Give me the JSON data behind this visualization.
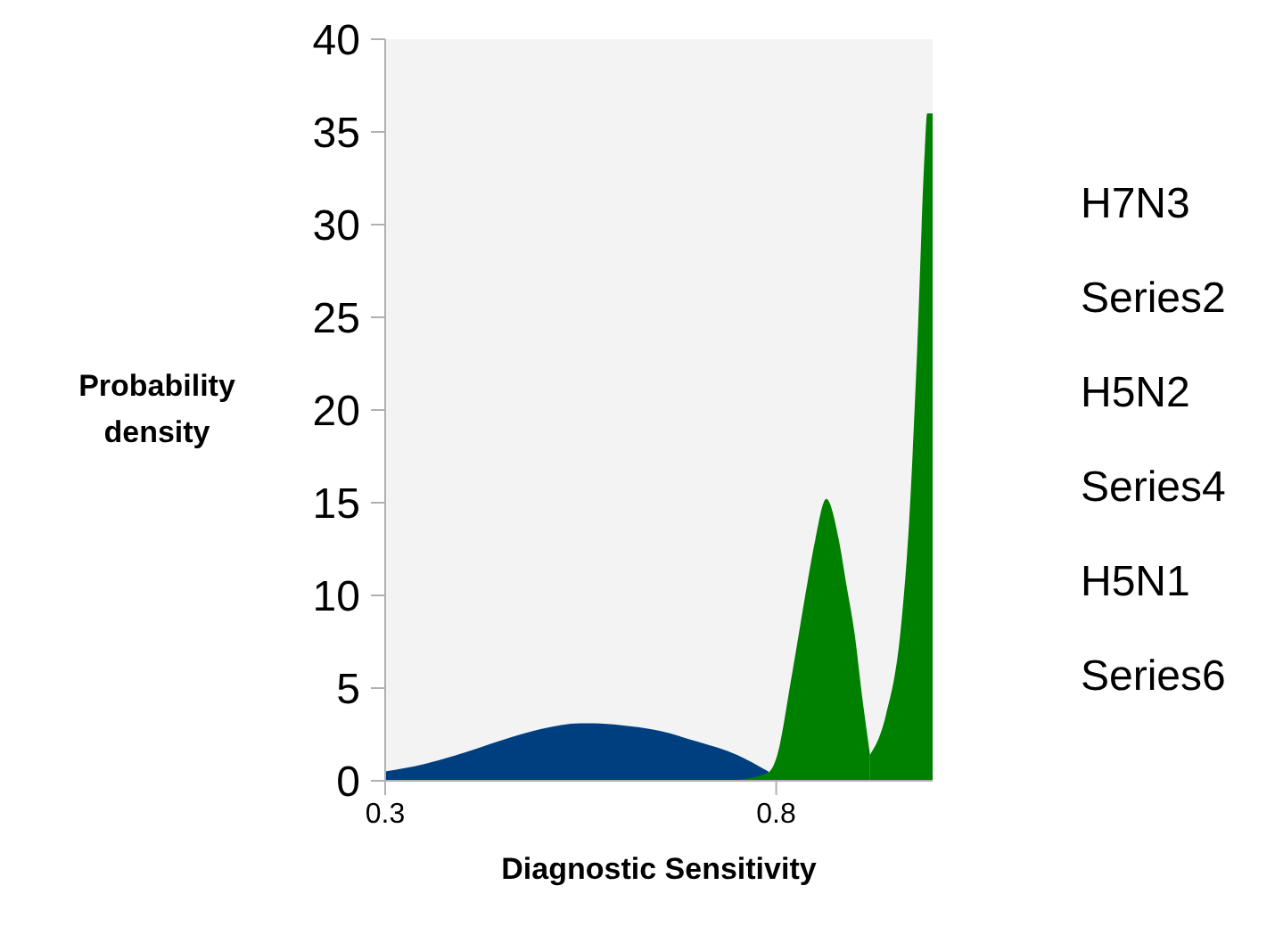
{
  "chart_data": {
    "type": "area",
    "xlabel": "Diagnostic Sensitivity",
    "ylabel": "Probability density",
    "annotations": [
      "H7N3",
      "Series2",
      "H5N2",
      "Series4",
      "H5N1",
      "Series6"
    ],
    "xlim": [
      0.3,
      1.0
    ],
    "xticks": [
      0.3,
      0.8
    ],
    "ylim": [
      0,
      40
    ],
    "yticks": [
      0,
      5,
      10,
      15,
      20,
      25,
      30,
      35,
      40
    ],
    "grid": false,
    "series": [
      {
        "color": "#003f7f",
        "x": [
          0.3,
          0.35,
          0.4,
          0.45,
          0.5,
          0.55,
          0.567,
          0.6,
          0.65,
          0.7,
          0.75,
          0.79
        ],
        "values": [
          0.5,
          0.9,
          1.5,
          2.2,
          2.8,
          3.1,
          3.1,
          3.0,
          2.7,
          2.1,
          1.4,
          0.5
        ]
      },
      {
        "color": "#008000",
        "x": [
          0.75,
          0.79,
          0.8,
          0.82,
          0.84,
          0.85,
          0.864,
          0.88,
          0.89,
          0.9,
          0.91,
          0.92
        ],
        "values": [
          0.05,
          0.45,
          1.2,
          5.7,
          10.7,
          13.0,
          15.2,
          13.0,
          10.5,
          8.0,
          4.5,
          1.4
        ]
      },
      {
        "color": "#008000",
        "x": [
          0.92,
          0.94,
          0.96,
          0.97,
          0.98,
          0.99,
          0.993,
          1.0
        ],
        "values": [
          1.4,
          3.5,
          8.5,
          14,
          23,
          34,
          36,
          36
        ]
      }
    ]
  }
}
